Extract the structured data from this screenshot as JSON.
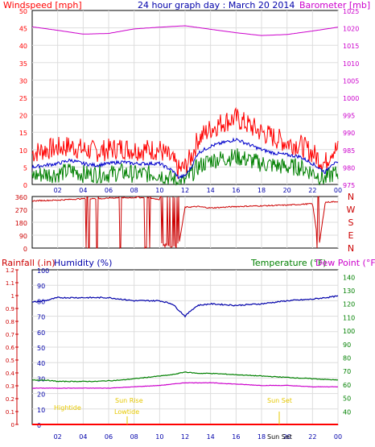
{
  "header": {
    "title": "24 hour graph day : March 20 2014",
    "left_label": "Windspeed [mph]",
    "right_label": "Barometer [mb]"
  },
  "direction_panel": {
    "compass": [
      "N",
      "W",
      "S",
      "E",
      "N"
    ]
  },
  "bottom_header": {
    "rain_label": "Rainfall (.in)",
    "humidity_label": "Humidity (%)",
    "temperature_label": "Temperature (°F)",
    "dewpoint_label": "Dew Point (°F)"
  },
  "annotations": {
    "high_tide": "Hightide",
    "sun_rise": "Sun Rise",
    "low_tide": "Lowtide",
    "sun_set": "Sun Set",
    "sun_set_axis": "Sun Set"
  },
  "colors": {
    "wind_gust": "#ff0000",
    "wind_avg": "#0000cc",
    "wind_speed": "#008000",
    "barometer": "#cc00cc",
    "direction": "#cc0000",
    "humidity": "#0000aa",
    "temperature": "#008000",
    "dewpoint": "#cc00cc",
    "rain": "#ff0000",
    "annotation": "#e6c800"
  },
  "chart_data": [
    {
      "type": "line",
      "x_ticks": [
        "02",
        "04",
        "06",
        "08",
        "10",
        "12",
        "14",
        "16",
        "18",
        "20",
        "22",
        "00"
      ],
      "left_axis": {
        "ticks": [
          0,
          5,
          10,
          15,
          20,
          25,
          30,
          35,
          40,
          45,
          50
        ],
        "ylim": [
          0,
          50
        ]
      },
      "right_axis": {
        "ticks": [
          975,
          980,
          985,
          990,
          995,
          1000,
          1005,
          1010,
          1015,
          1020,
          1025
        ],
        "ylim": [
          975,
          1025
        ]
      },
      "series": [
        {
          "key": "gust",
          "hours": [
            0,
            1,
            2,
            3,
            4,
            5,
            6,
            7,
            8,
            9,
            10,
            11,
            11.5,
            12,
            12.5,
            13,
            14,
            15,
            16,
            17,
            18,
            19,
            20,
            21,
            22,
            23,
            23.5
          ],
          "values": [
            9,
            10,
            10.5,
            11,
            10,
            9.5,
            10,
            10.5,
            10,
            10,
            10,
            7,
            4,
            5,
            8,
            13,
            16,
            18,
            19,
            17,
            15,
            13.5,
            12,
            11.5,
            9,
            6,
            10
          ]
        },
        {
          "key": "avg",
          "hours": [
            0,
            1,
            2,
            3,
            4,
            5,
            6,
            7,
            8,
            9,
            10,
            11,
            11.5,
            12,
            12.5,
            13,
            14,
            15,
            16,
            17,
            18,
            19,
            20,
            21,
            22,
            23,
            23.5
          ],
          "values": [
            5,
            5.5,
            6,
            7,
            6,
            5.5,
            6,
            6.5,
            6,
            6,
            6,
            4,
            2,
            2.5,
            5,
            9,
            11,
            12,
            13,
            11.5,
            10,
            9,
            8.5,
            8,
            6,
            3.5,
            6
          ]
        },
        {
          "key": "speed",
          "hours": [
            0,
            1,
            2,
            3,
            4,
            5,
            6,
            7,
            8,
            9,
            10,
            11,
            11.5,
            12,
            12.5,
            13,
            14,
            15,
            16,
            17,
            18,
            19,
            20,
            21,
            22,
            23,
            23.5
          ],
          "values": [
            2.5,
            3,
            3,
            4,
            3,
            3,
            3,
            3.5,
            3,
            3,
            3,
            1.5,
            0.5,
            1,
            3,
            5,
            7,
            7.5,
            8,
            7,
            6,
            5.5,
            5,
            5,
            3.5,
            1.5,
            3
          ]
        },
        {
          "key": "barometer",
          "hours": [
            0,
            2,
            4,
            6,
            8,
            10,
            12,
            14,
            16,
            18,
            20,
            22,
            24
          ],
          "values": [
            1020.3,
            1019.3,
            1018.2,
            1018.4,
            1019.7,
            1020.2,
            1020.6,
            1019.6,
            1018.6,
            1017.8,
            1018.1,
            1019.1,
            1020.2
          ]
        }
      ]
    },
    {
      "type": "line",
      "x_ticks": [
        "02",
        "04",
        "06",
        "08",
        "10",
        "12",
        "14",
        "16",
        "18",
        "20",
        "22",
        "00"
      ],
      "left_axis": {
        "ticks": [
          0,
          90,
          180,
          270,
          360
        ],
        "ylim": [
          0,
          360
        ]
      },
      "series": [
        {
          "key": "direction",
          "hours": [
            0,
            2,
            4,
            5.8,
            6,
            8,
            9,
            10,
            10.5,
            11,
            11.5,
            12,
            13,
            14,
            16,
            18,
            20,
            22,
            22.5,
            23,
            24
          ],
          "values": [
            330,
            335,
            345,
            345,
            350,
            352,
            352,
            340,
            10,
            5,
            15,
            285,
            290,
            280,
            290,
            295,
            300,
            310,
            5,
            320,
            325
          ]
        }
      ]
    },
    {
      "type": "line",
      "x_ticks": [
        "02",
        "04",
        "06",
        "08",
        "10",
        "12",
        "14",
        "16",
        "18",
        "20",
        "22",
        "00"
      ],
      "rain_axis": {
        "ticks": [
          0,
          0.1,
          0.2,
          0.3,
          0.4,
          0.5,
          0.6,
          0.7,
          0.8,
          0.9,
          1,
          1.1,
          1.2
        ],
        "ylim": [
          0,
          1.2
        ]
      },
      "humidity_axis": {
        "ticks": [
          0,
          10,
          20,
          30,
          40,
          50,
          60,
          70,
          80,
          90,
          100
        ],
        "ylim": [
          0,
          100
        ]
      },
      "temp_axis": {
        "ticks": [
          40,
          50,
          60,
          70,
          80,
          90,
          100,
          110,
          120,
          130,
          140
        ],
        "ylim": [
          30,
          145
        ]
      },
      "series": [
        {
          "key": "humidity",
          "hours": [
            0,
            1,
            2,
            3,
            4,
            5,
            6,
            7,
            8,
            9,
            10,
            11,
            11.5,
            12,
            12.5,
            13,
            14,
            16,
            18,
            20,
            22,
            24
          ],
          "values": [
            79,
            80,
            82,
            82,
            82,
            82,
            82,
            81,
            80,
            80,
            80,
            78,
            74,
            70,
            74,
            77,
            78,
            77,
            78,
            80,
            81,
            83
          ]
        },
        {
          "key": "temperature",
          "hours": [
            0,
            1,
            2,
            3,
            4,
            5,
            6,
            7,
            8,
            9,
            10,
            11,
            12,
            13,
            14,
            16,
            18,
            20,
            22,
            24
          ],
          "values": [
            63,
            63,
            62,
            62,
            62,
            62,
            62.5,
            63,
            64,
            65,
            66,
            67,
            69,
            68,
            68,
            67,
            66,
            65,
            64,
            63
          ]
        },
        {
          "key": "dewpoint",
          "hours": [
            0,
            2,
            4,
            6,
            8,
            10,
            11,
            12,
            13,
            14,
            16,
            18,
            20,
            22,
            24
          ],
          "values": [
            57,
            57,
            57,
            57,
            58,
            59,
            60,
            61,
            61,
            61,
            60,
            59,
            59,
            58,
            58
          ]
        },
        {
          "key": "rain",
          "hours": [
            0,
            24
          ],
          "values": [
            0,
            0
          ]
        }
      ]
    }
  ]
}
